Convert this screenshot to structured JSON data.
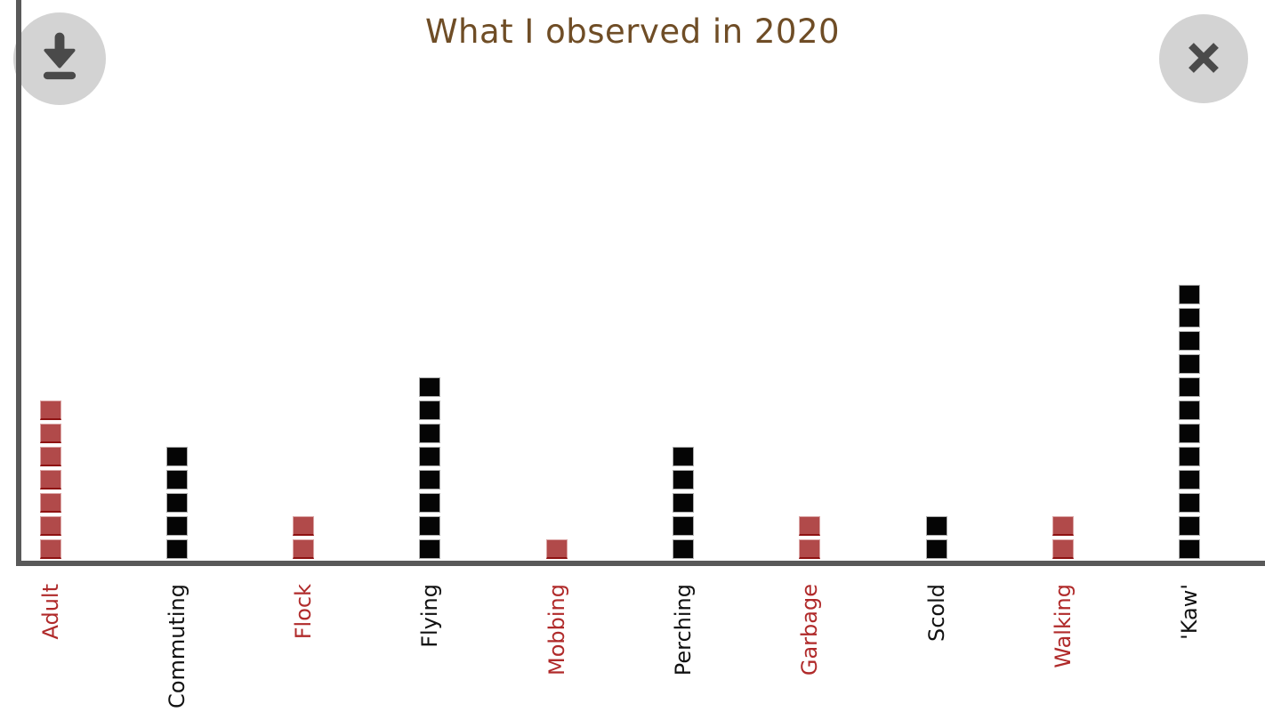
{
  "title": "What I observed in 2020",
  "icons": {
    "download": "download-icon",
    "close": "close-icon"
  },
  "chart_data": {
    "type": "bar",
    "style": "unit-squares (each stacked square = 1 count)",
    "title": "What I observed in 2020",
    "categories": [
      "Adult",
      "Commuting",
      "Flock",
      "Flying",
      "Mobbing",
      "Perching",
      "Garbage",
      "Scold",
      "Walking",
      "'Kaw'"
    ],
    "values": [
      7,
      5,
      2,
      8,
      1,
      5,
      2,
      2,
      2,
      12
    ],
    "bar_colors": [
      "red",
      "black",
      "red",
      "black",
      "red",
      "black",
      "red",
      "black",
      "red",
      "black"
    ],
    "xlabel": "",
    "ylabel": "",
    "ylim": [
      0,
      12
    ],
    "grid": false,
    "legend": false,
    "tick_label_rotation": "vertical (reads bottom-to-top)",
    "tick_label_colors_match_bars": true
  },
  "colors": {
    "title_text": "#6f4d26",
    "axis_line": "#595959",
    "red_fill": "#b14a4a",
    "red_edge_bottom": "#8e1212",
    "red_edge_light": "#dba5a5",
    "black_fill": "#050505",
    "black_edge": "#adadad",
    "red_label": "#b02a2a",
    "black_label": "#111111",
    "button_bg": "#d3d3d3",
    "button_icon": "#4a4a4a"
  }
}
